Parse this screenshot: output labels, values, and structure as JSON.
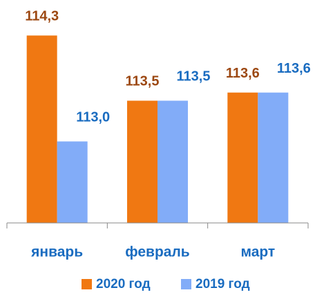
{
  "chart_data": {
    "type": "bar",
    "categories": [
      "январь",
      "февраль",
      "март"
    ],
    "series": [
      {
        "name": "2020 год",
        "color": "#f07812",
        "values": [
          114.3,
          113.5,
          113.6
        ],
        "value_labels": [
          "114,3",
          "113,5",
          "113,6"
        ],
        "label_color": "#9c4812"
      },
      {
        "name": "2019 год",
        "color": "#82acf8",
        "values": [
          113.0,
          113.5,
          113.6
        ],
        "value_labels": [
          "113,0",
          "113,5",
          "113,6"
        ],
        "label_color": "#1a6cc0"
      }
    ],
    "ylim": [
      112,
      114.6
    ],
    "category_color": "#1a6cc0",
    "legend": "bottom"
  }
}
